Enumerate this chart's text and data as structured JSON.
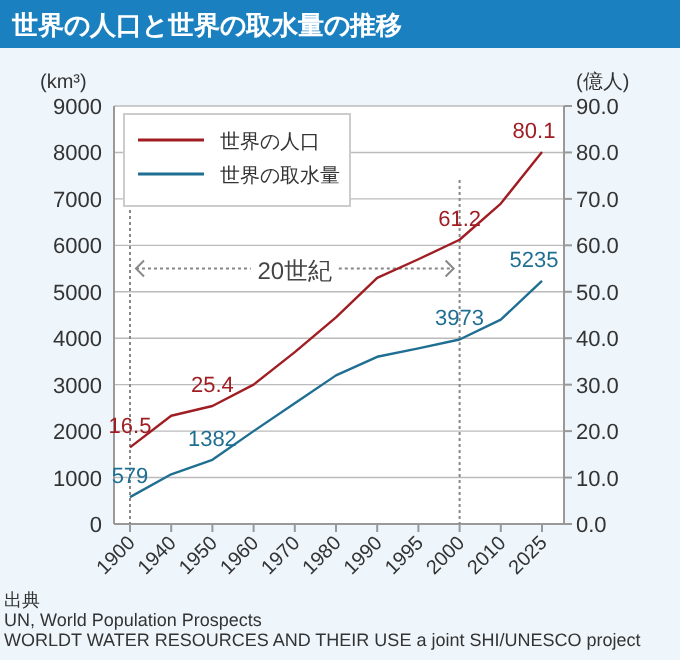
{
  "chart_data": {
    "type": "line",
    "title": "世界の人口と世界の取水量の推移",
    "ylabel": "(km³)",
    "y2label": "(億人)",
    "categories": [
      "1900",
      "1940",
      "1950",
      "1960",
      "1970",
      "1980",
      "1990",
      "1995",
      "2000",
      "2010",
      "2025"
    ],
    "series": [
      {
        "name": "世界の人口",
        "color": "#a01e23",
        "axis": "y2",
        "values": [
          16.5,
          23.3,
          25.4,
          30.0,
          37.0,
          44.5,
          53.0,
          57.0,
          61.2,
          69.0,
          80.1
        ],
        "value_labels": [
          "16.5",
          null,
          "25.4",
          null,
          null,
          null,
          null,
          null,
          "61.2",
          null,
          "80.1"
        ]
      },
      {
        "name": "世界の取水量",
        "color": "#1f6f93",
        "values": [
          579,
          1070,
          1382,
          2000,
          2600,
          3200,
          3600,
          3780,
          3973,
          4400,
          5235
        ],
        "value_labels": [
          "579",
          null,
          "1382",
          null,
          null,
          null,
          null,
          null,
          "3973",
          null,
          "5235"
        ]
      }
    ],
    "ylim": [
      0,
      9000
    ],
    "yticks": [
      0,
      1000,
      2000,
      3000,
      4000,
      5000,
      6000,
      7000,
      8000,
      9000
    ],
    "y2lim": [
      0,
      90
    ],
    "y2ticks": [
      {
        "value": 0,
        "label": "0.0"
      },
      {
        "value": 10,
        "label": "10.0"
      },
      {
        "value": 20,
        "label": "20.0"
      },
      {
        "value": 30,
        "label": "30.0"
      },
      {
        "value": 40,
        "label": "40.0"
      },
      {
        "value": 50,
        "label": "50.0"
      },
      {
        "value": 60,
        "label": "60.0"
      },
      {
        "value": 70,
        "label": "70.0"
      },
      {
        "value": 80,
        "label": "80.0"
      },
      {
        "value": 90,
        "label": "90.0"
      }
    ],
    "ref_lines": [
      {
        "axis": "x",
        "value": "1900",
        "color": "#888888",
        "line_style": "dotted"
      },
      {
        "axis": "x",
        "value": "2000",
        "color": "#888888",
        "line_style": "dotted"
      }
    ],
    "grid": "y",
    "legend": "top left",
    "annotations": [
      {
        "text": "20世紀",
        "x": "2000",
        "y": 5500
      },
      "出典",
      "UN, World Population Prospects",
      "WORLDT WATER RESOURCES AND THEIR USE a joint SHI/UNESCO project"
    ]
  }
}
